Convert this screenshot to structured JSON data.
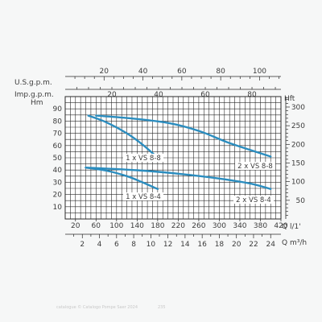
{
  "chart_data": {
    "type": "line",
    "title": "",
    "axes": {
      "bottom_primary": {
        "label": "Q l/1'",
        "ticks": [
          20,
          60,
          100,
          140,
          180,
          220,
          260,
          300,
          340,
          380,
          420
        ],
        "tick_labels": [
          "20",
          "60",
          "100",
          "140",
          "180",
          "220",
          "260",
          "300",
          "340",
          "380",
          "420"
        ],
        "range": [
          0,
          420
        ]
      },
      "bottom_secondary": {
        "label": "Q m³/h",
        "ticks": [
          2,
          4,
          6,
          8,
          10,
          12,
          14,
          16,
          18,
          20,
          22,
          24
        ],
        "tick_labels": [
          "2",
          "4",
          "6",
          "8",
          "10",
          "12",
          "14",
          "16",
          "18",
          "20",
          "22",
          "24"
        ],
        "range": [
          0,
          25.2
        ]
      },
      "top_usgpm": {
        "label": "U.S.g.p.m.",
        "ticks": [
          20,
          40,
          60,
          80,
          100
        ],
        "tick_labels": [
          "20",
          "40",
          "60",
          "80",
          "100"
        ],
        "range": [
          0,
          111
        ]
      },
      "top_impgpm": {
        "label": "Imp.g.p.m.",
        "ticks": [
          20,
          40,
          60,
          80
        ],
        "tick_labels": [
          "20",
          "40",
          "60",
          "80"
        ],
        "range": [
          0,
          92.4
        ]
      },
      "left": {
        "label": "Hm",
        "ticks": [
          5,
          10,
          15,
          20,
          25,
          30,
          35,
          40,
          45,
          50,
          55,
          60,
          65,
          70,
          75,
          80,
          85,
          90,
          95
        ],
        "tick_labels": [
          "10",
          "20",
          "30",
          "40",
          "50",
          "60",
          "70",
          "80",
          "90"
        ],
        "labeled_ticks": [
          10,
          20,
          30,
          40,
          50,
          60,
          70,
          80,
          90
        ],
        "range": [
          0,
          100
        ]
      },
      "right": {
        "label": "Hft",
        "ticks": [
          50,
          100,
          150,
          200,
          250,
          300
        ],
        "tick_labels": [
          "50",
          "100",
          "150",
          "200",
          "250",
          "300"
        ],
        "range": [
          0,
          328
        ]
      }
    },
    "x_unit": "Q l/1'",
    "y_unit": "Hm",
    "grid": true,
    "series": [
      {
        "name": "1 x VS 8-8",
        "color": "#2b8dbf",
        "points": [
          [
            45,
            84.5
          ],
          [
            80,
            79
          ],
          [
            120,
            70
          ],
          [
            150,
            61
          ],
          [
            180,
            50
          ]
        ]
      },
      {
        "name": "2 x VS 8-8",
        "color": "#2b8dbf",
        "points": [
          [
            60,
            84.5
          ],
          [
            120,
            82.5
          ],
          [
            200,
            78.5
          ],
          [
            260,
            72
          ],
          [
            320,
            62
          ],
          [
            400,
            51
          ]
        ]
      },
      {
        "name": "1 x VS 8-4",
        "color": "#2b8dbf",
        "points": [
          [
            40,
            42
          ],
          [
            80,
            39.5
          ],
          [
            120,
            35
          ],
          [
            150,
            30
          ],
          [
            180,
            24.5
          ]
        ]
      },
      {
        "name": "2 x VS 8-4",
        "color": "#2b8dbf",
        "points": [
          [
            40,
            42
          ],
          [
            140,
            39.8
          ],
          [
            220,
            37
          ],
          [
            300,
            33
          ],
          [
            360,
            29
          ],
          [
            400,
            24.5
          ]
        ]
      }
    ],
    "curve_labels": [
      "1 x VS 8-8",
      "2 x VS 8-8",
      "1 x VS 8-4",
      "2 x VS 8-4"
    ]
  },
  "footer": {
    "credit_text": "catalogue © Catalogo Pompe Saer 2024",
    "page_number": "235"
  }
}
